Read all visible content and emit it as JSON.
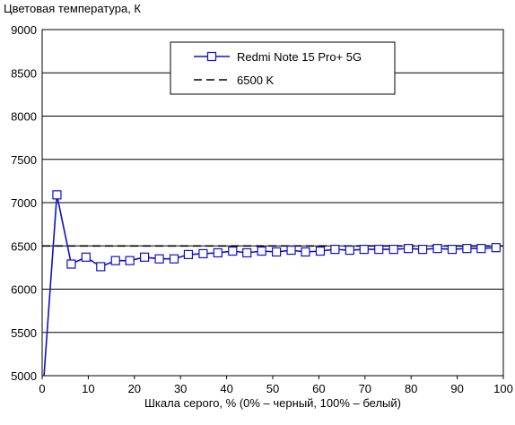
{
  "chart_data": {
    "type": "line",
    "ylabel": "Цветовая температура, К",
    "xlabel": "Шкала серого, % (0% – черный, 100% – белый)",
    "xlim": [
      0,
      100
    ],
    "ylim": [
      5000,
      9000
    ],
    "x_ticks": [
      0,
      10,
      20,
      30,
      40,
      50,
      60,
      70,
      80,
      90,
      100
    ],
    "y_ticks": [
      5000,
      5500,
      6000,
      6500,
      7000,
      7500,
      8000,
      8500,
      9000
    ],
    "grid": "horizontal",
    "legend_position": "top-right",
    "series": [
      {
        "name": "Redmi Note 15 Pro+ 5G",
        "color": "#1010c8",
        "marker": "square",
        "line_style": "solid",
        "x": [
          0,
          3.2,
          6.3,
          9.5,
          12.7,
          15.9,
          19.0,
          22.2,
          25.4,
          28.6,
          31.7,
          34.9,
          38.1,
          41.3,
          44.4,
          47.6,
          50.8,
          54.0,
          57.1,
          60.3,
          63.5,
          66.7,
          69.8,
          73.0,
          76.2,
          79.4,
          82.5,
          85.7,
          88.9,
          92.1,
          95.2,
          98.4
        ],
        "y": [
          4700,
          7090,
          6290,
          6370,
          6260,
          6330,
          6330,
          6370,
          6350,
          6350,
          6400,
          6410,
          6420,
          6440,
          6420,
          6440,
          6430,
          6450,
          6430,
          6440,
          6460,
          6450,
          6460,
          6460,
          6460,
          6470,
          6460,
          6470,
          6460,
          6470,
          6470,
          6480
        ]
      },
      {
        "name": "6500 K",
        "color": "#000000",
        "marker": "none",
        "line_style": "dashed",
        "x": [
          0,
          100
        ],
        "y": [
          6500,
          6500
        ]
      }
    ]
  }
}
